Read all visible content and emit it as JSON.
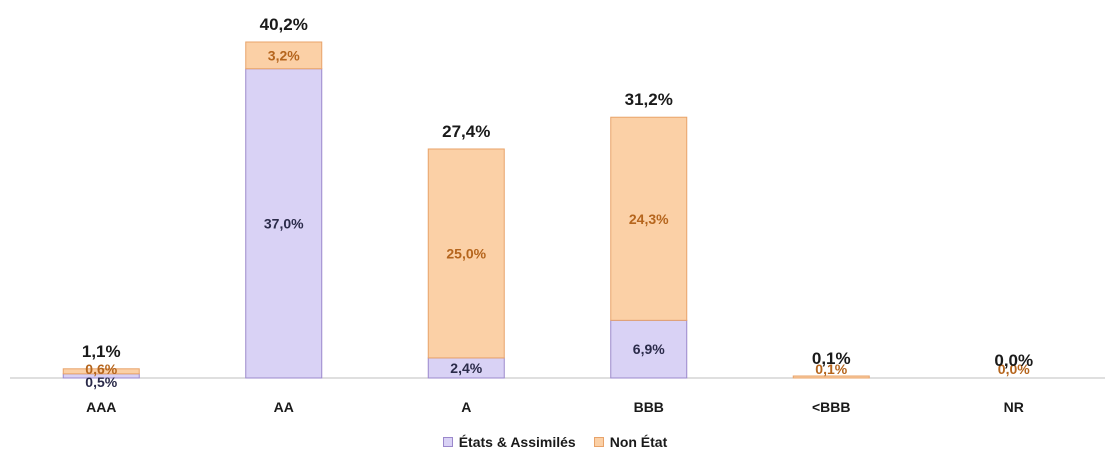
{
  "chart_data": {
    "type": "bar",
    "stacked": true,
    "title": "",
    "xlabel": "",
    "ylabel": "",
    "categories": [
      "AAA",
      "AA",
      "A",
      "BBB",
      "<BBB",
      "NR"
    ],
    "series": [
      {
        "name": "États & Assimilés",
        "values": [
          0.5,
          37.0,
          2.4,
          6.9,
          0.0,
          0.0
        ],
        "labels": [
          "0,5%",
          "37,0%",
          "2,4%",
          "6,9%",
          "",
          ""
        ],
        "color": "#d9d2f5",
        "border": "#9b88cc",
        "label_color": "#2b2b4a"
      },
      {
        "name": "Non État",
        "values": [
          0.6,
          3.2,
          25.0,
          24.3,
          0.1,
          0.0
        ],
        "labels": [
          "0,6%",
          "3,2%",
          "25,0%",
          "24,3%",
          "0,1%",
          "0,0%"
        ],
        "color": "#fbd0a6",
        "border": "#e8a36a",
        "label_color": "#b5651d"
      }
    ],
    "totals": [
      "1,1%",
      "40,2%",
      "27,4%",
      "31,2%",
      "0,1%",
      "0,0%"
    ],
    "ylim": [
      0,
      45
    ],
    "grid": false,
    "legend_position": "bottom"
  }
}
